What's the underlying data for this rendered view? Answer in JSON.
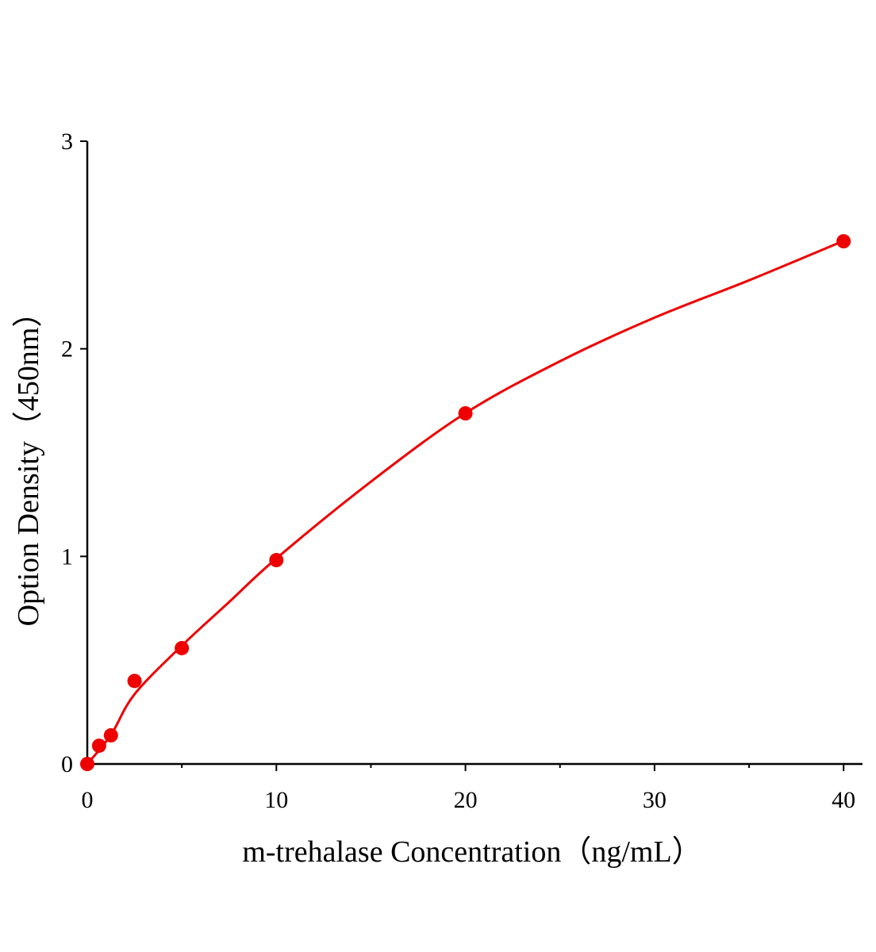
{
  "chart_data": {
    "type": "scatter",
    "x_label": "m-trehalase Concentration（ng/mL）",
    "y_label": "Option Density（450nm）",
    "xlim": [
      0,
      41
    ],
    "xticks": [
      0,
      10,
      20,
      30,
      40
    ],
    "xticks_minor": [
      5,
      15,
      25,
      35
    ],
    "ylim": [
      0,
      3
    ],
    "yticks": [
      0,
      1,
      2,
      3
    ],
    "grid": false,
    "series": [
      {
        "type": "scatter",
        "color": "#ee0000",
        "x": [
          0,
          0.625,
          1.25,
          2.5,
          5,
          10,
          20,
          40
        ],
        "values": [
          0,
          0.088,
          0.138,
          0.4,
          0.558,
          0.982,
          1.689,
          2.518
        ]
      },
      {
        "type": "line",
        "color": "#ee0000",
        "x": [
          0,
          1.25,
          2.5,
          5,
          7.5,
          10,
          15,
          20,
          25,
          30,
          35,
          40
        ],
        "values": [
          0,
          0.14,
          0.336,
          0.57,
          0.78,
          0.99,
          1.36,
          1.69,
          1.94,
          2.15,
          2.33,
          2.52
        ]
      }
    ]
  }
}
